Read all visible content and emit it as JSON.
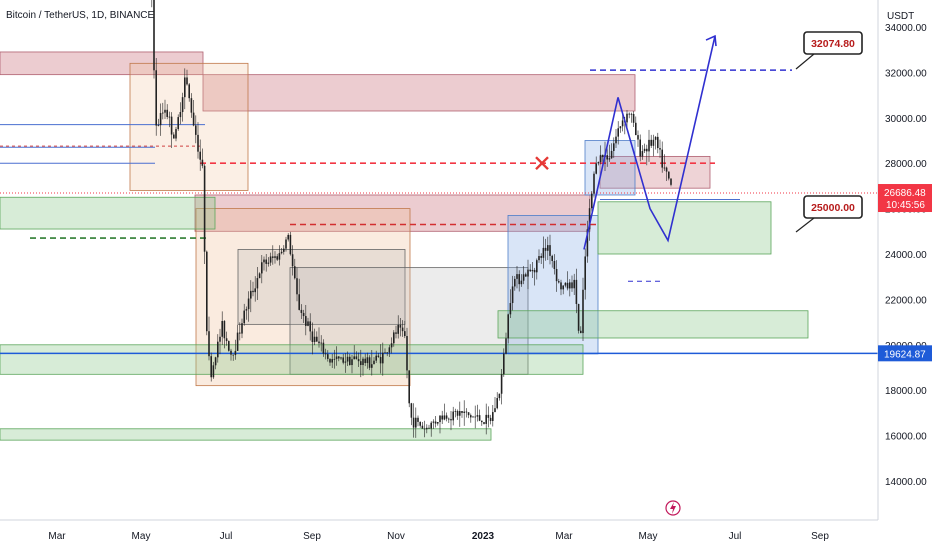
{
  "title": "Bitcoin / TetherUS, 1D, BINANCE",
  "chart_data": {
    "type": "candlestick",
    "currency": "USDT",
    "y_axis": {
      "min": 12200,
      "max": 35000,
      "ticks": [
        14000,
        16000,
        18000,
        20000,
        22000,
        24000,
        26000,
        28000,
        30000,
        32000,
        34000
      ]
    },
    "x_axis": {
      "labels": [
        "Mar",
        "May",
        "Jul",
        "Sep",
        "Nov",
        "2023",
        "Mar",
        "May",
        "Jul",
        "Sep"
      ]
    },
    "price_badges": [
      {
        "value": "26686.48",
        "sub": "10:45:56",
        "color": "#f23645"
      },
      {
        "value": "19624.87",
        "color": "#1e5bd8"
      }
    ],
    "callouts": [
      {
        "label": "32074.80",
        "price": 32074.8
      },
      {
        "label": "25000.00",
        "price": 25000
      }
    ],
    "horizontal_levels": [
      {
        "price": 19624.87,
        "color": "#1e5bd8",
        "style": "solid"
      },
      {
        "price": 26686.48,
        "color": "#f23645",
        "style": "dotted"
      },
      {
        "price": 28000,
        "color": "#f23645",
        "style": "dashed"
      },
      {
        "price": 25300,
        "color": "#d32f2f",
        "style": "dashed"
      },
      {
        "price": 24700,
        "color": "#2e7d32",
        "style": "dashed"
      },
      {
        "price": 32100,
        "color": "#3030d0",
        "style": "dashed"
      }
    ],
    "zones": [
      {
        "kind": "supply",
        "from": 30300,
        "to": 31900
      },
      {
        "kind": "supply",
        "from": 25000,
        "to": 26600
      },
      {
        "kind": "demand",
        "from": 24000,
        "to": 26500
      },
      {
        "kind": "demand",
        "from": 18700,
        "to": 20000
      },
      {
        "kind": "demand",
        "from": 15800,
        "to": 16300
      },
      {
        "kind": "demand",
        "from": 20300,
        "to": 21500
      }
    ],
    "projection": {
      "path_prices": [
        24200,
        30900,
        26000,
        24600,
        33600
      ]
    }
  },
  "icons": {
    "bolt": "bolt-icon"
  }
}
